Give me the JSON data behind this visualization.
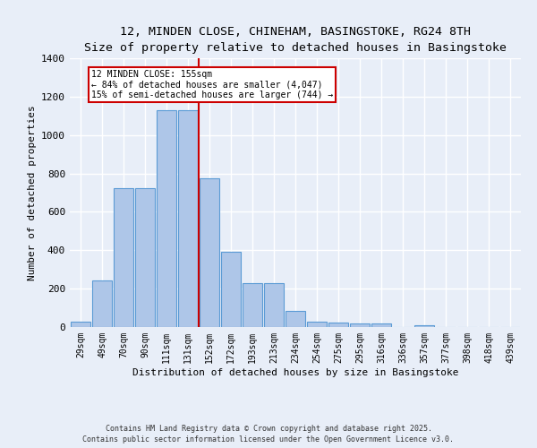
{
  "title_line1": "12, MINDEN CLOSE, CHINEHAM, BASINGSTOKE, RG24 8TH",
  "title_line2": "Size of property relative to detached houses in Basingstoke",
  "xlabel": "Distribution of detached houses by size in Basingstoke",
  "ylabel": "Number of detached properties",
  "categories": [
    "29sqm",
    "49sqm",
    "70sqm",
    "90sqm",
    "111sqm",
    "131sqm",
    "152sqm",
    "172sqm",
    "193sqm",
    "213sqm",
    "234sqm",
    "254sqm",
    "275sqm",
    "295sqm",
    "316sqm",
    "336sqm",
    "357sqm",
    "377sqm",
    "398sqm",
    "418sqm",
    "439sqm"
  ],
  "values": [
    30,
    245,
    725,
    725,
    1130,
    1130,
    775,
    390,
    230,
    230,
    85,
    30,
    25,
    20,
    20,
    0,
    10,
    0,
    0,
    0,
    0
  ],
  "bar_color": "#aec6e8",
  "bar_edge_color": "#5b9bd5",
  "vline_x_index": 6,
  "vline_color": "#cc0000",
  "annotation_text": "12 MINDEN CLOSE: 155sqm\n← 84% of detached houses are smaller (4,047)\n15% of semi-detached houses are larger (744) →",
  "annotation_box_color": "#ffffff",
  "annotation_box_edge": "#cc0000",
  "footer_line1": "Contains HM Land Registry data © Crown copyright and database right 2025.",
  "footer_line2": "Contains public sector information licensed under the Open Government Licence v3.0.",
  "background_color": "#e8eef8",
  "plot_background": "#e8eef8",
  "grid_color": "#ffffff",
  "ylim": [
    0,
    1400
  ],
  "yticks": [
    0,
    200,
    400,
    600,
    800,
    1000,
    1200,
    1400
  ]
}
